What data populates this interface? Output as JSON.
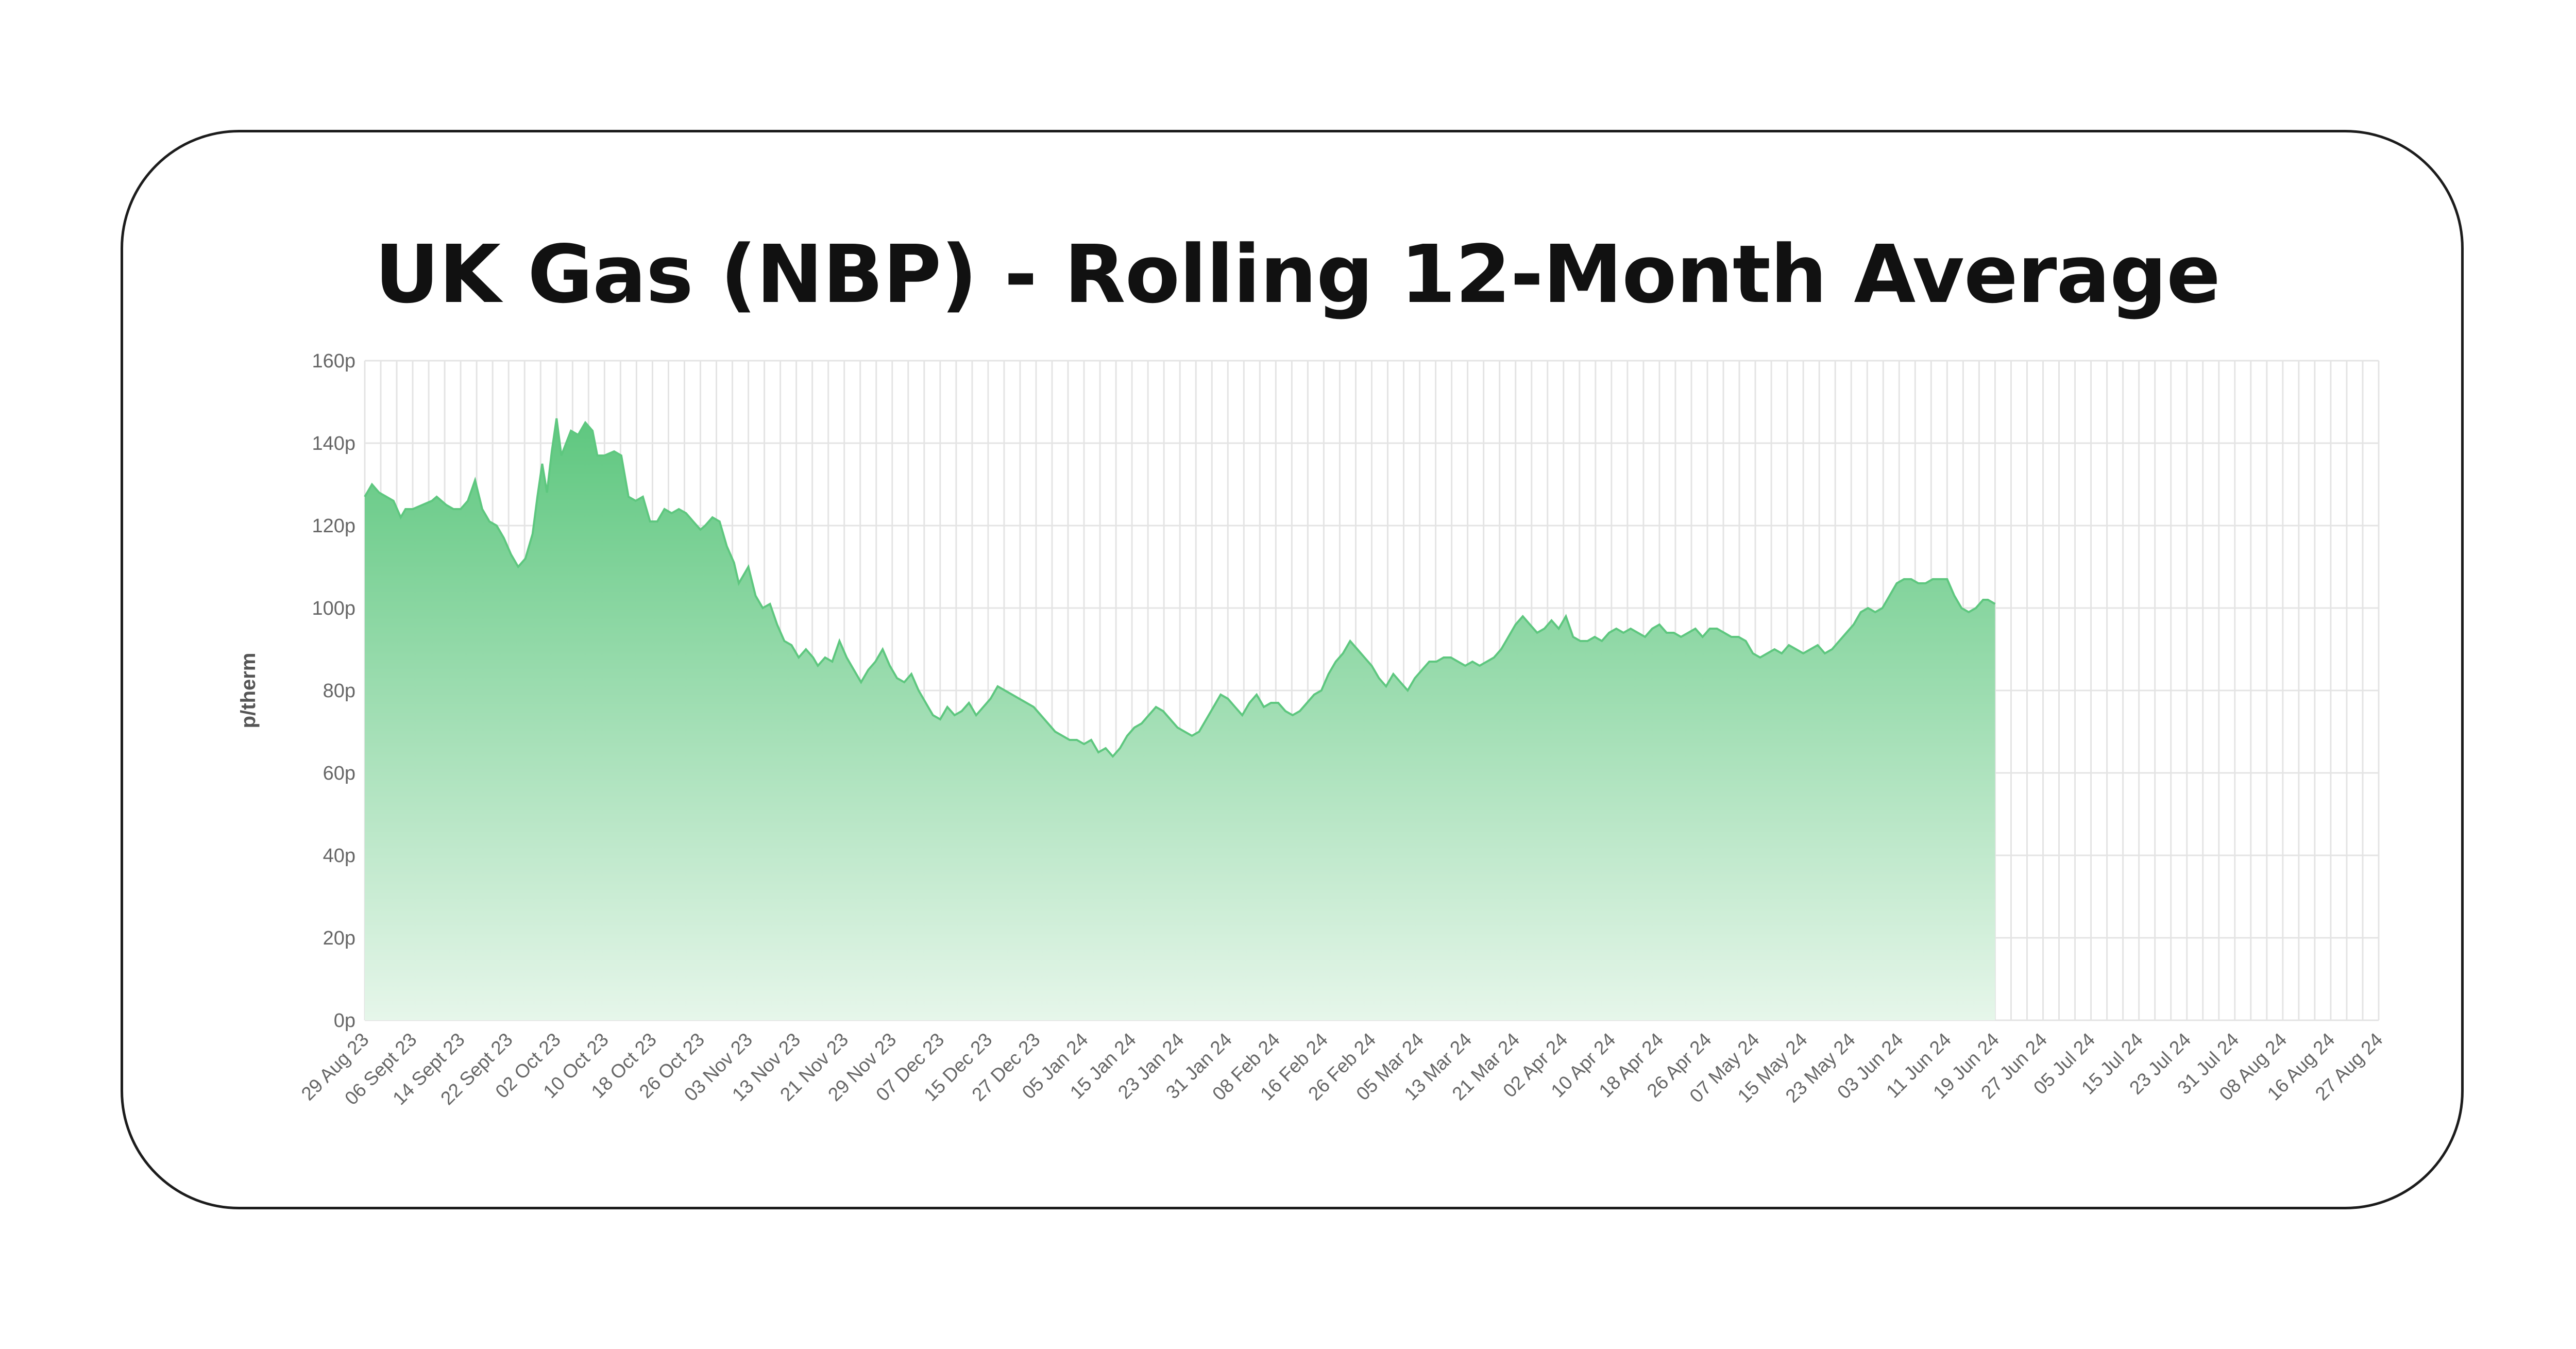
{
  "colors": {
    "fill_top": "#5ec77f",
    "fill_bottom": "#e6f6ea",
    "line": "#5ec77f",
    "grid": "#e4e4e4",
    "border": "#1c1c1c"
  },
  "chart_data": {
    "type": "area",
    "title": "UK Gas (NBP) - Rolling 12-Month Average",
    "xlabel": "",
    "ylabel": "p/therm",
    "ylim": [
      0,
      160
    ],
    "yticks": [
      "0p",
      "20p",
      "40p",
      "60p",
      "80p",
      "100p",
      "120p",
      "140p",
      "160p"
    ],
    "ytick_values": [
      0,
      20,
      40,
      60,
      80,
      100,
      120,
      140,
      160
    ],
    "grid": true,
    "legend": "none",
    "categories": [
      "29 Aug 23",
      "06 Sept 23",
      "14 Sept 23",
      "22 Sept 23",
      "02 Oct 23",
      "10 Oct 23",
      "18 Oct 23",
      "26 Oct 23",
      "03 Nov 23",
      "13 Nov 23",
      "21 Nov 23",
      "29 Nov 23",
      "07 Dec 23",
      "15 Dec 23",
      "27 Dec 23",
      "05 Jan 24",
      "15 Jan 24",
      "23 Jan 24",
      "31 Jan 24",
      "08 Feb 24",
      "16 Feb 24",
      "26 Feb 24",
      "05 Mar 24",
      "13 Mar 24",
      "21 Mar 24",
      "02 Apr 24",
      "10 Apr 24",
      "18 Apr 24",
      "26 Apr 24",
      "07 May 24",
      "15 May 24",
      "23 May 24",
      "03 Jun 24",
      "11 Jun 24",
      "19 Jun 24",
      "27 Jun 24",
      "05 Jul 24",
      "15 Jul 24",
      "23 Jul 24",
      "31 Jul 24",
      "08 Aug 24",
      "16 Aug 24",
      "27 Aug 24"
    ],
    "series": [
      {
        "values": [
          [
            0,
            127
          ],
          [
            0.15,
            130
          ],
          [
            0.3,
            128
          ],
          [
            0.45,
            127
          ],
          [
            0.6,
            126
          ],
          [
            0.75,
            122
          ],
          [
            0.85,
            124
          ],
          [
            1.0,
            124
          ],
          [
            1.2,
            125
          ],
          [
            1.4,
            126
          ],
          [
            1.5,
            127
          ],
          [
            1.7,
            125
          ],
          [
            1.85,
            124
          ],
          [
            2.0,
            124
          ],
          [
            2.15,
            126
          ],
          [
            2.3,
            131
          ],
          [
            2.45,
            124
          ],
          [
            2.6,
            121
          ],
          [
            2.75,
            120
          ],
          [
            2.9,
            117
          ],
          [
            3.05,
            113
          ],
          [
            3.2,
            110
          ],
          [
            3.35,
            112
          ],
          [
            3.5,
            118
          ],
          [
            3.6,
            127
          ],
          [
            3.7,
            135
          ],
          [
            3.8,
            128
          ],
          [
            3.9,
            138
          ],
          [
            4.0,
            146
          ],
          [
            4.1,
            137
          ],
          [
            4.2,
            140
          ],
          [
            4.3,
            143
          ],
          [
            4.45,
            142
          ],
          [
            4.6,
            145
          ],
          [
            4.75,
            143
          ],
          [
            4.85,
            137
          ],
          [
            5.0,
            137
          ],
          [
            5.2,
            138
          ],
          [
            5.35,
            137
          ],
          [
            5.5,
            127
          ],
          [
            5.65,
            126
          ],
          [
            5.8,
            127
          ],
          [
            5.95,
            121
          ],
          [
            6.1,
            121
          ],
          [
            6.25,
            124
          ],
          [
            6.4,
            123
          ],
          [
            6.55,
            124
          ],
          [
            6.7,
            123
          ],
          [
            6.85,
            121
          ],
          [
            7.0,
            119
          ],
          [
            7.1,
            120
          ],
          [
            7.25,
            122
          ],
          [
            7.4,
            121
          ],
          [
            7.55,
            115
          ],
          [
            7.7,
            111
          ],
          [
            7.8,
            106
          ],
          [
            7.9,
            108
          ],
          [
            8.0,
            110
          ],
          [
            8.15,
            103
          ],
          [
            8.3,
            100
          ],
          [
            8.45,
            101
          ],
          [
            8.6,
            96
          ],
          [
            8.75,
            92
          ],
          [
            8.9,
            91
          ],
          [
            9.05,
            88
          ],
          [
            9.2,
            90
          ],
          [
            9.35,
            88
          ],
          [
            9.45,
            86
          ],
          [
            9.6,
            88
          ],
          [
            9.75,
            87
          ],
          [
            9.9,
            92
          ],
          [
            10.05,
            88
          ],
          [
            10.2,
            85
          ],
          [
            10.35,
            82
          ],
          [
            10.5,
            85
          ],
          [
            10.65,
            87
          ],
          [
            10.8,
            90
          ],
          [
            10.95,
            86
          ],
          [
            11.1,
            83
          ],
          [
            11.25,
            82
          ],
          [
            11.4,
            84
          ],
          [
            11.55,
            80
          ],
          [
            11.7,
            77
          ],
          [
            11.85,
            74
          ],
          [
            12.0,
            73
          ],
          [
            12.15,
            76
          ],
          [
            12.3,
            74
          ],
          [
            12.45,
            75
          ],
          [
            12.6,
            77
          ],
          [
            12.75,
            74
          ],
          [
            12.9,
            76
          ],
          [
            13.05,
            78
          ],
          [
            13.2,
            81
          ],
          [
            13.35,
            80
          ],
          [
            13.5,
            79
          ],
          [
            13.65,
            78
          ],
          [
            13.8,
            77
          ],
          [
            13.95,
            76
          ],
          [
            14.1,
            74
          ],
          [
            14.25,
            72
          ],
          [
            14.4,
            70
          ],
          [
            14.55,
            69
          ],
          [
            14.7,
            68
          ],
          [
            14.85,
            68
          ],
          [
            15.0,
            67
          ],
          [
            15.15,
            68
          ],
          [
            15.3,
            65
          ],
          [
            15.45,
            66
          ],
          [
            15.6,
            64
          ],
          [
            15.75,
            66
          ],
          [
            15.9,
            69
          ],
          [
            16.05,
            71
          ],
          [
            16.2,
            72
          ],
          [
            16.35,
            74
          ],
          [
            16.5,
            76
          ],
          [
            16.65,
            75
          ],
          [
            16.8,
            73
          ],
          [
            16.95,
            71
          ],
          [
            17.1,
            70
          ],
          [
            17.25,
            69
          ],
          [
            17.4,
            70
          ],
          [
            17.55,
            73
          ],
          [
            17.7,
            76
          ],
          [
            17.85,
            79
          ],
          [
            18.0,
            78
          ],
          [
            18.15,
            76
          ],
          [
            18.3,
            74
          ],
          [
            18.45,
            77
          ],
          [
            18.6,
            79
          ],
          [
            18.75,
            76
          ],
          [
            18.9,
            77
          ],
          [
            19.05,
            77
          ],
          [
            19.2,
            75
          ],
          [
            19.35,
            74
          ],
          [
            19.5,
            75
          ],
          [
            19.65,
            77
          ],
          [
            19.8,
            79
          ],
          [
            19.95,
            80
          ],
          [
            20.1,
            84
          ],
          [
            20.25,
            87
          ],
          [
            20.4,
            89
          ],
          [
            20.55,
            92
          ],
          [
            20.7,
            90
          ],
          [
            20.85,
            88
          ],
          [
            21.0,
            86
          ],
          [
            21.15,
            83
          ],
          [
            21.3,
            81
          ],
          [
            21.45,
            84
          ],
          [
            21.6,
            82
          ],
          [
            21.75,
            80
          ],
          [
            21.9,
            83
          ],
          [
            22.05,
            85
          ],
          [
            22.2,
            87
          ],
          [
            22.35,
            87
          ],
          [
            22.5,
            88
          ],
          [
            22.65,
            88
          ],
          [
            22.8,
            87
          ],
          [
            22.95,
            86
          ],
          [
            23.1,
            87
          ],
          [
            23.25,
            86
          ],
          [
            23.4,
            87
          ],
          [
            23.55,
            88
          ],
          [
            23.7,
            90
          ],
          [
            23.85,
            93
          ],
          [
            24.0,
            96
          ],
          [
            24.15,
            98
          ],
          [
            24.3,
            96
          ],
          [
            24.45,
            94
          ],
          [
            24.6,
            95
          ],
          [
            24.75,
            97
          ],
          [
            24.9,
            95
          ],
          [
            25.05,
            98
          ],
          [
            25.2,
            93
          ],
          [
            25.35,
            92
          ],
          [
            25.5,
            92
          ],
          [
            25.65,
            93
          ],
          [
            25.8,
            92
          ],
          [
            25.95,
            94
          ],
          [
            26.1,
            95
          ],
          [
            26.25,
            94
          ],
          [
            26.4,
            95
          ],
          [
            26.55,
            94
          ],
          [
            26.7,
            93
          ],
          [
            26.85,
            95
          ],
          [
            27.0,
            96
          ],
          [
            27.15,
            94
          ],
          [
            27.3,
            94
          ],
          [
            27.45,
            93
          ],
          [
            27.6,
            94
          ],
          [
            27.75,
            95
          ],
          [
            27.9,
            93
          ],
          [
            28.05,
            95
          ],
          [
            28.2,
            95
          ],
          [
            28.35,
            94
          ],
          [
            28.5,
            93
          ],
          [
            28.65,
            93
          ],
          [
            28.8,
            92
          ],
          [
            28.95,
            89
          ],
          [
            29.1,
            88
          ],
          [
            29.25,
            89
          ],
          [
            29.4,
            90
          ],
          [
            29.55,
            89
          ],
          [
            29.7,
            91
          ],
          [
            29.85,
            90
          ],
          [
            30.0,
            89
          ],
          [
            30.15,
            90
          ],
          [
            30.3,
            91
          ],
          [
            30.45,
            89
          ],
          [
            30.6,
            90
          ],
          [
            30.75,
            92
          ],
          [
            30.9,
            94
          ],
          [
            31.05,
            96
          ],
          [
            31.2,
            99
          ],
          [
            31.35,
            100
          ],
          [
            31.5,
            99
          ],
          [
            31.65,
            100
          ],
          [
            31.8,
            103
          ],
          [
            31.95,
            106
          ],
          [
            32.1,
            107
          ],
          [
            32.25,
            107
          ],
          [
            32.4,
            106
          ],
          [
            32.55,
            106
          ],
          [
            32.7,
            107
          ],
          [
            32.85,
            107
          ],
          [
            33.0,
            107
          ],
          [
            33.15,
            103
          ],
          [
            33.3,
            100
          ],
          [
            33.45,
            99
          ],
          [
            33.6,
            100
          ],
          [
            33.75,
            102
          ],
          [
            33.85,
            102
          ],
          [
            34.0,
            101
          ]
        ]
      }
    ]
  }
}
